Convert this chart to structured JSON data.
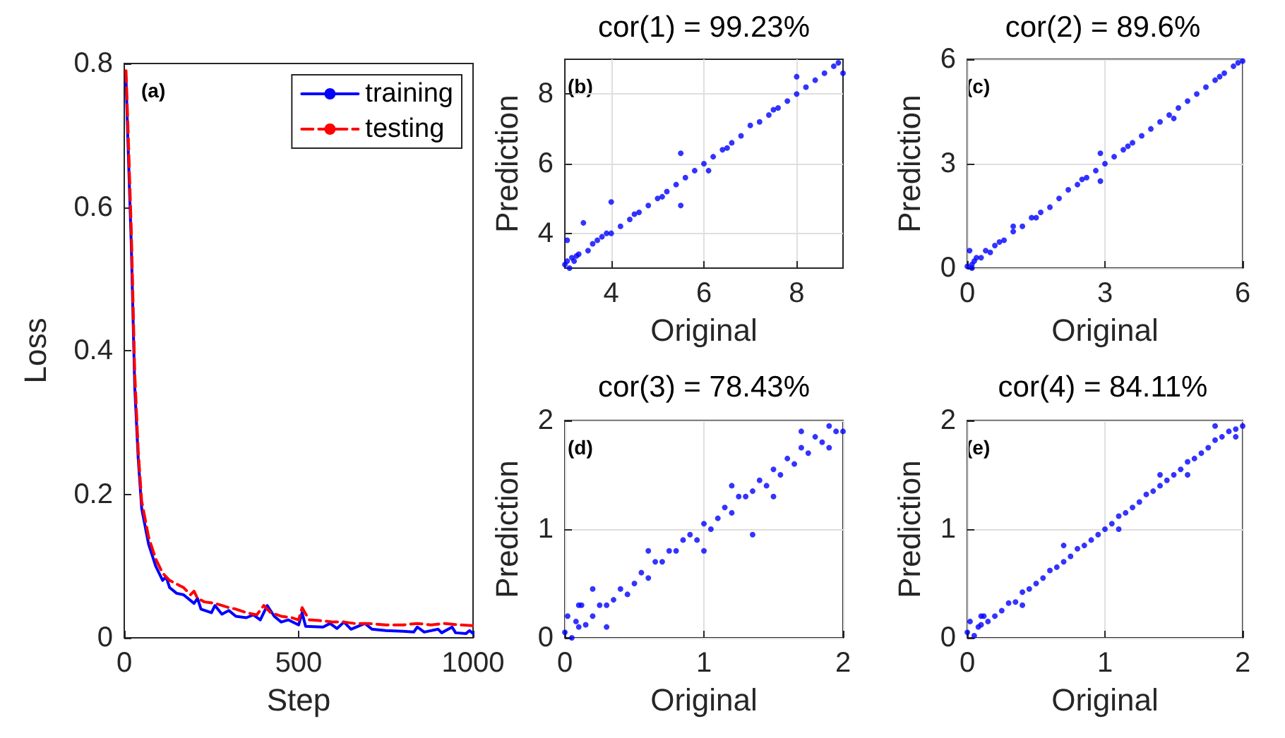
{
  "chart_data": [
    {
      "type": "line",
      "xlabel": "Step",
      "ylabel": "Loss",
      "xlim": [
        0,
        1000
      ],
      "xticks": [
        0,
        500,
        1000
      ],
      "ylim": [
        0,
        0.8
      ],
      "yticks": [
        0,
        0.2,
        0.4,
        0.6,
        0.8
      ],
      "grid": false,
      "legend": "top right",
      "marker": "none",
      "annotations": [
        "(a)"
      ],
      "series": [
        {
          "name": "training",
          "color": "#0000ff",
          "line_style": "solid",
          "x": [
            5,
            10,
            20,
            30,
            40,
            50,
            70,
            90,
            110,
            120,
            130,
            150,
            170,
            200,
            210,
            220,
            250,
            260,
            280,
            300,
            320,
            350,
            370,
            390,
            410,
            430,
            450,
            470,
            500,
            510,
            520,
            570,
            590,
            610,
            630,
            650,
            690,
            710,
            750,
            800,
            830,
            840,
            860,
            900,
            910,
            940,
            950,
            980,
            990,
            1000
          ],
          "values": [
            0.78,
            0.7,
            0.55,
            0.35,
            0.25,
            0.18,
            0.13,
            0.1,
            0.08,
            0.085,
            0.07,
            0.062,
            0.06,
            0.048,
            0.055,
            0.04,
            0.035,
            0.045,
            0.033,
            0.038,
            0.03,
            0.028,
            0.032,
            0.025,
            0.045,
            0.03,
            0.022,
            0.025,
            0.018,
            0.035,
            0.016,
            0.015,
            0.02,
            0.013,
            0.022,
            0.012,
            0.02,
            0.012,
            0.01,
            0.009,
            0.008,
            0.015,
            0.008,
            0.012,
            0.007,
            0.015,
            0.007,
            0.006,
            0.01,
            0.006
          ]
        },
        {
          "name": "testing",
          "color": "#ff0000",
          "line_style": "dashed",
          "x": [
            5,
            10,
            20,
            30,
            40,
            50,
            70,
            90,
            110,
            130,
            150,
            170,
            190,
            200,
            210,
            230,
            260,
            280,
            300,
            320,
            350,
            380,
            400,
            420,
            450,
            480,
            500,
            510,
            530,
            560,
            600,
            630,
            660,
            700,
            750,
            800,
            840,
            880,
            920,
            960,
            1000
          ],
          "values": [
            0.79,
            0.72,
            0.57,
            0.37,
            0.26,
            0.19,
            0.14,
            0.11,
            0.09,
            0.08,
            0.075,
            0.07,
            0.06,
            0.065,
            0.055,
            0.05,
            0.048,
            0.045,
            0.042,
            0.04,
            0.035,
            0.032,
            0.045,
            0.035,
            0.03,
            0.028,
            0.025,
            0.042,
            0.025,
            0.024,
            0.022,
            0.022,
            0.02,
            0.02,
            0.018,
            0.018,
            0.02,
            0.018,
            0.02,
            0.018,
            0.017
          ]
        }
      ]
    },
    {
      "type": "scatter",
      "title": "cor(1) = 99.23%",
      "xlabel": "Original",
      "ylabel": "Prediction",
      "xlim": [
        3,
        9
      ],
      "xticks": [
        4,
        6,
        8
      ],
      "ylim": [
        3,
        9
      ],
      "yticks": [
        4,
        6,
        8
      ],
      "grid": true,
      "marker": "circle",
      "annotations": [
        "(b)"
      ],
      "x": [
        3.0,
        3.05,
        3.1,
        3.15,
        3.2,
        3.3,
        3.4,
        3.5,
        3.6,
        3.7,
        3.8,
        3.9,
        4.0,
        4.2,
        4.4,
        4.6,
        4.8,
        5.0,
        5.2,
        5.4,
        5.5,
        5.5,
        5.6,
        5.8,
        6.0,
        6.1,
        6.2,
        6.4,
        6.6,
        6.8,
        7.0,
        7.2,
        7.4,
        7.6,
        7.8,
        8.0,
        8.2,
        8.4,
        8.6,
        8.8,
        8.9,
        9.0,
        3.05,
        4.0,
        8.0,
        3.25,
        4.5,
        5.1,
        6.5,
        7.5
      ],
      "series": [
        {
          "color": "#0000ff",
          "values": [
            3.1,
            3.8,
            3.0,
            3.3,
            3.2,
            3.4,
            4.3,
            3.5,
            3.7,
            3.8,
            3.9,
            4.0,
            4.9,
            4.2,
            4.4,
            4.6,
            4.8,
            5.0,
            5.2,
            5.4,
            6.3,
            4.8,
            5.6,
            5.8,
            6.0,
            5.8,
            6.2,
            6.4,
            6.6,
            6.8,
            7.1,
            7.2,
            7.4,
            7.6,
            7.8,
            8.5,
            8.2,
            8.4,
            8.6,
            8.8,
            8.9,
            8.6,
            3.2,
            4.0,
            8.0,
            3.35,
            4.55,
            5.05,
            6.45,
            7.55
          ]
        }
      ]
    },
    {
      "type": "scatter",
      "title": "cor(2) = 89.6%",
      "xlabel": "Original",
      "ylabel": "Prediction",
      "xlim": [
        0,
        6
      ],
      "xticks": [
        0,
        3,
        6
      ],
      "ylim": [
        0,
        6
      ],
      "yticks": [
        0,
        3,
        6
      ],
      "grid": true,
      "marker": "circle",
      "annotations": [
        "(c)"
      ],
      "x": [
        0,
        0.05,
        0.1,
        0.15,
        0.2,
        0.3,
        0.4,
        0.5,
        0.6,
        0.8,
        1.0,
        1.2,
        1.4,
        1.6,
        1.8,
        2.0,
        2.2,
        2.4,
        2.6,
        2.8,
        2.9,
        3.0,
        3.2,
        3.4,
        3.6,
        3.8,
        4.0,
        4.2,
        4.4,
        4.6,
        4.8,
        5.0,
        5.2,
        5.4,
        5.6,
        5.8,
        5.9,
        6.0,
        0.1,
        2.9,
        1.0,
        4.5,
        0.7,
        1.5,
        2.5,
        3.5,
        5.5
      ],
      "series": [
        {
          "color": "#0000ff",
          "values": [
            0.05,
            0.5,
            0.1,
            0.2,
            0.3,
            0.3,
            0.5,
            0.45,
            0.65,
            0.8,
            1.05,
            1.2,
            1.45,
            1.6,
            1.75,
            2.0,
            2.25,
            2.4,
            2.6,
            2.8,
            2.5,
            3.0,
            3.2,
            3.4,
            3.6,
            3.8,
            4.0,
            4.2,
            4.4,
            4.6,
            4.8,
            5.0,
            5.2,
            5.4,
            5.6,
            5.8,
            5.9,
            5.95,
            0.0,
            3.3,
            1.2,
            4.3,
            0.75,
            1.45,
            2.55,
            3.5,
            5.5
          ]
        }
      ]
    },
    {
      "type": "scatter",
      "title": "cor(3) = 78.43%",
      "xlabel": "Original",
      "ylabel": "Prediction",
      "xlim": [
        0,
        2
      ],
      "xticks": [
        0,
        1,
        2
      ],
      "ylim": [
        0,
        2
      ],
      "yticks": [
        0,
        1,
        2
      ],
      "grid": true,
      "marker": "circle",
      "annotations": [
        "(d)"
      ],
      "x": [
        0,
        0.02,
        0.05,
        0.08,
        0.1,
        0.12,
        0.15,
        0.2,
        0.25,
        0.3,
        0.35,
        0.4,
        0.45,
        0.5,
        0.55,
        0.6,
        0.65,
        0.7,
        0.75,
        0.8,
        0.85,
        0.9,
        0.95,
        1.0,
        1.05,
        1.1,
        1.15,
        1.2,
        1.25,
        1.3,
        1.35,
        1.4,
        1.45,
        1.5,
        1.55,
        1.6,
        1.65,
        1.7,
        1.75,
        1.8,
        1.85,
        1.9,
        1.95,
        2.0,
        0.1,
        0.3,
        0.6,
        1.0,
        1.2,
        1.5,
        1.7,
        1.9,
        0.2,
        1.35
      ],
      "series": [
        {
          "color": "#0000ff",
          "values": [
            0.05,
            0.2,
            0.0,
            0.15,
            0.1,
            0.3,
            0.12,
            0.2,
            0.3,
            0.3,
            0.35,
            0.45,
            0.4,
            0.5,
            0.6,
            0.55,
            0.7,
            0.7,
            0.8,
            0.8,
            0.9,
            0.95,
            0.9,
            1.05,
            1.0,
            1.1,
            1.2,
            1.15,
            1.3,
            1.3,
            1.35,
            1.45,
            1.4,
            1.55,
            1.5,
            1.65,
            1.6,
            1.75,
            1.7,
            1.85,
            1.8,
            1.95,
            1.9,
            1.9,
            0.3,
            0.1,
            0.8,
            0.8,
            1.4,
            1.3,
            1.9,
            1.75,
            0.45,
            0.95
          ]
        }
      ]
    },
    {
      "type": "scatter",
      "title": "cor(4) = 84.11%",
      "xlabel": "Original",
      "ylabel": "Prediction",
      "xlim": [
        0,
        2
      ],
      "xticks": [
        0,
        1,
        2
      ],
      "ylim": [
        0,
        2
      ],
      "yticks": [
        0,
        1,
        2
      ],
      "grid": true,
      "marker": "circle",
      "annotations": [
        "(e)"
      ],
      "x": [
        0,
        0.02,
        0.05,
        0.08,
        0.1,
        0.12,
        0.15,
        0.2,
        0.25,
        0.3,
        0.35,
        0.4,
        0.45,
        0.5,
        0.55,
        0.6,
        0.65,
        0.7,
        0.75,
        0.8,
        0.85,
        0.9,
        0.95,
        1.0,
        1.05,
        1.1,
        1.15,
        1.2,
        1.25,
        1.3,
        1.35,
        1.4,
        1.45,
        1.5,
        1.55,
        1.6,
        1.65,
        1.7,
        1.75,
        1.8,
        1.85,
        1.9,
        1.95,
        2.0,
        0.1,
        0.4,
        0.7,
        1.1,
        1.4,
        1.6,
        1.8,
        1.95
      ],
      "series": [
        {
          "color": "#0000ff",
          "values": [
            0.05,
            0.15,
            0.02,
            0.1,
            0.12,
            0.2,
            0.15,
            0.2,
            0.25,
            0.32,
            0.33,
            0.42,
            0.45,
            0.5,
            0.55,
            0.62,
            0.65,
            0.7,
            0.75,
            0.82,
            0.85,
            0.9,
            0.95,
            1.0,
            1.05,
            1.12,
            1.15,
            1.2,
            1.25,
            1.32,
            1.35,
            1.4,
            1.45,
            1.5,
            1.55,
            1.62,
            1.65,
            1.7,
            1.75,
            1.82,
            1.85,
            1.9,
            1.92,
            1.95,
            0.2,
            0.3,
            0.85,
            1.0,
            1.5,
            1.5,
            1.95,
            1.85
          ]
        }
      ]
    }
  ]
}
